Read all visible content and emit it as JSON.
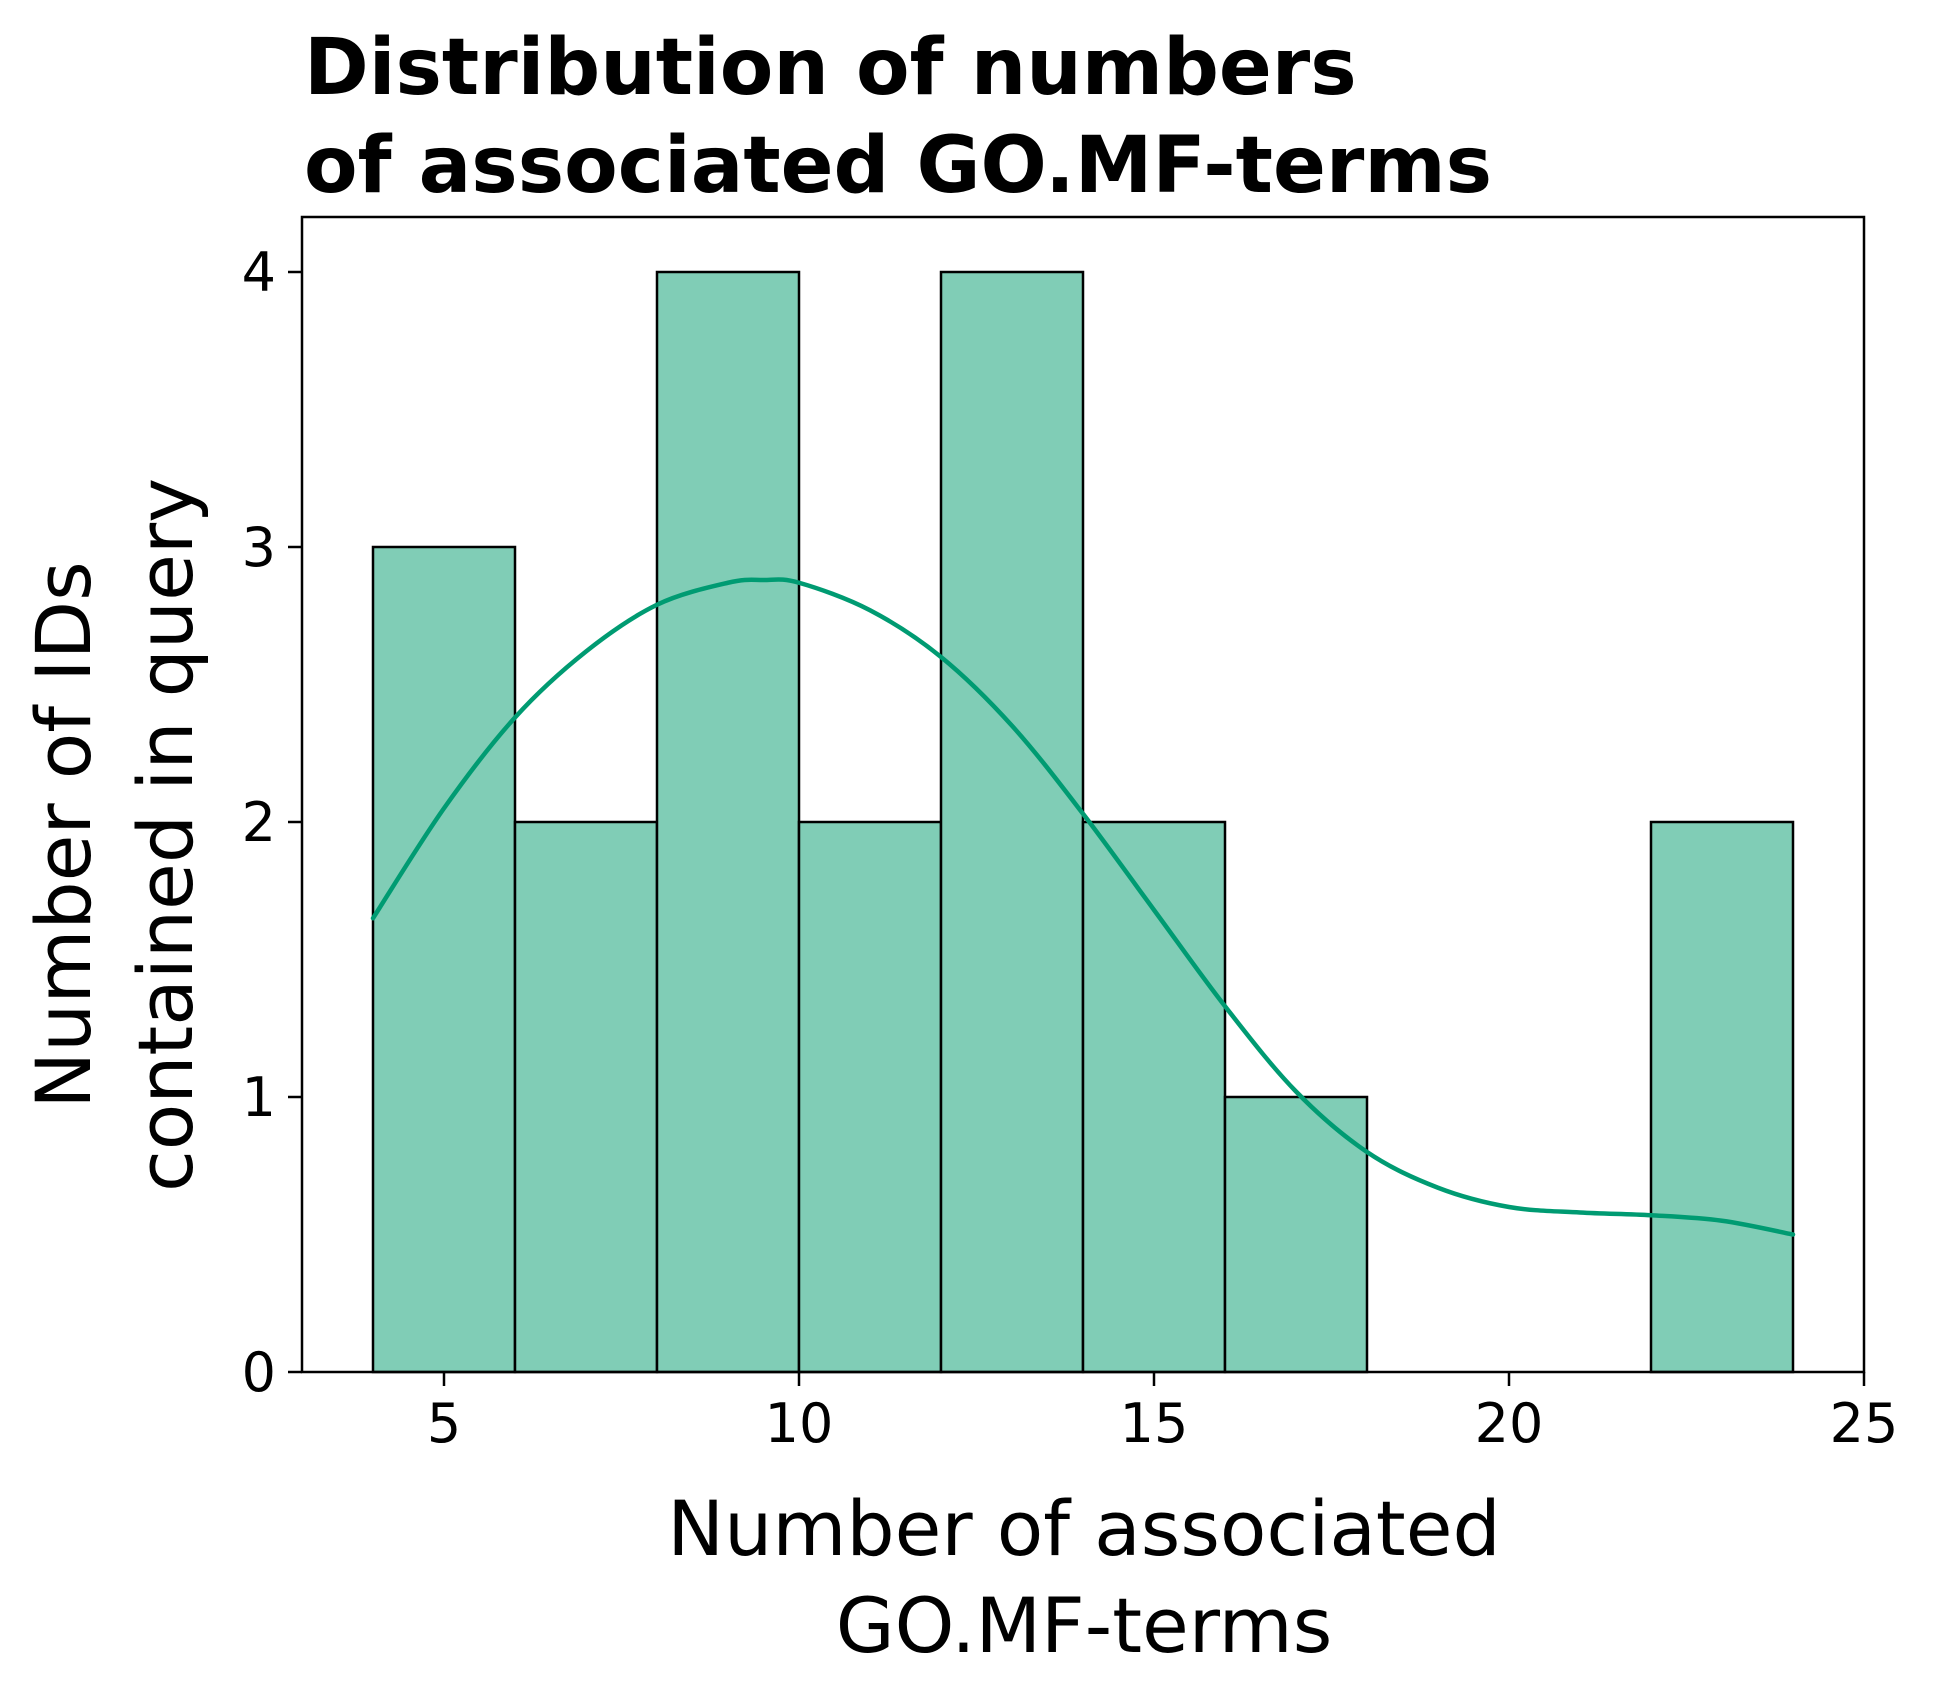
{
  "chart_data": {
    "type": "bar",
    "subtype": "histogram-with-kde",
    "title_lines": [
      "Distribution of numbers",
      "of associated GO.MF-terms"
    ],
    "xlabel_lines": [
      "Number of associated",
      "GO.MF-terms"
    ],
    "ylabel_lines": [
      "Number of IDs",
      "contained in query"
    ],
    "xlim": [
      3,
      25
    ],
    "ylim": [
      0,
      4.2
    ],
    "xticks": [
      5,
      10,
      15,
      20,
      25
    ],
    "yticks": [
      0,
      1,
      2,
      3,
      4
    ],
    "bins": [
      {
        "x0": 4,
        "x1": 6,
        "count": 3
      },
      {
        "x0": 6,
        "x1": 8,
        "count": 2
      },
      {
        "x0": 8,
        "x1": 10,
        "count": 4
      },
      {
        "x0": 10,
        "x1": 12,
        "count": 2
      },
      {
        "x0": 12,
        "x1": 14,
        "count": 4
      },
      {
        "x0": 14,
        "x1": 16,
        "count": 2
      },
      {
        "x0": 16,
        "x1": 18,
        "count": 1
      },
      {
        "x0": 18,
        "x1": 20,
        "count": 0
      },
      {
        "x0": 20,
        "x1": 22,
        "count": 0
      },
      {
        "x0": 22,
        "x1": 24,
        "count": 2
      }
    ],
    "kde": {
      "x": [
        4,
        5,
        6,
        7,
        8,
        9,
        9.5,
        10,
        11,
        12,
        13,
        14,
        15,
        16,
        17,
        18,
        19,
        20,
        21,
        22,
        23,
        24
      ],
      "y": [
        1.65,
        2.05,
        2.38,
        2.62,
        2.79,
        2.87,
        2.88,
        2.87,
        2.77,
        2.6,
        2.35,
        2.03,
        1.68,
        1.33,
        1.02,
        0.8,
        0.67,
        0.6,
        0.58,
        0.57,
        0.55,
        0.5
      ]
    },
    "grid": false,
    "legend": "none",
    "colors": {
      "bar_fill": "#80cdb6",
      "bar_edge": "#000000",
      "kde_line": "#009b72",
      "axis": "#000000"
    }
  }
}
